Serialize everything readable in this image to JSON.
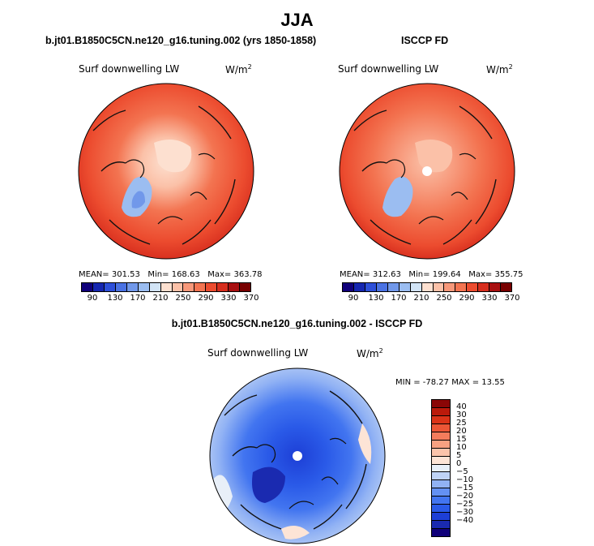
{
  "figure_title": "JJA",
  "panels": [
    {
      "title": "b.jt01.B1850C5CN.ne120_g16.tuning.002 (yrs 1850-1858)",
      "variable": "Surf downwelling LW",
      "units": "W/m",
      "units_exp": "2",
      "stats": {
        "mean_label": "MEAN=",
        "mean": "301.53",
        "min_label": "Min=",
        "min": "168.63",
        "max_label": "Max=",
        "max": "363.78"
      }
    },
    {
      "title": "ISCCP FD",
      "variable": "Surf downwelling LW",
      "units": "W/m",
      "units_exp": "2",
      "stats": {
        "mean_label": "MEAN=",
        "mean": "312.63",
        "min_label": "Min=",
        "min": "199.64",
        "max_label": "Max=",
        "max": "355.75"
      }
    },
    {
      "title": "b.jt01.B1850C5CN.ne120_g16.tuning.002 - ISCCP FD",
      "variable": "Surf downwelling LW",
      "units": "W/m",
      "units_exp": "2",
      "stats_text": "MIN = -78.27 MAX =  13.55"
    }
  ],
  "colors": {
    "abs_scale": [
      "#10007a",
      "#1526b0",
      "#2d4fd9",
      "#4a72e3",
      "#7198ea",
      "#9bbdf1",
      "#d2e4f6",
      "#fde0d0",
      "#fbc1a8",
      "#f7987a",
      "#f37451",
      "#ec4c2f",
      "#d72e1e",
      "#a80f10",
      "#780000"
    ],
    "diff_scale": [
      "#10007a",
      "#1a2ab0",
      "#1d3fd6",
      "#2a5ae8",
      "#4275f0",
      "#6491f3",
      "#91b2f4",
      "#bfd3f6",
      "#e8eff8",
      "#fde4d6",
      "#fbc4ab",
      "#f8a181",
      "#f47c5c",
      "#ec5636",
      "#db3318",
      "#bb1a0b",
      "#8a0606"
    ]
  },
  "chart_data": [
    {
      "type": "heatmap",
      "projection": "north polar stereographic",
      "title": "b.jt01.B1850C5CN.ne120_g16.tuning.002 (yrs 1850-1858)",
      "field": "Surf downwelling LW",
      "units": "W/m2",
      "colorbar_ticks": [
        "90",
        "130",
        "170",
        "210",
        "250",
        "290",
        "330",
        "370"
      ],
      "colorbar_range": [
        90,
        370
      ],
      "mean": 301.53,
      "min": 168.63,
      "max": 363.78
    },
    {
      "type": "heatmap",
      "projection": "north polar stereographic",
      "title": "ISCCP FD",
      "field": "Surf downwelling LW",
      "units": "W/m2",
      "colorbar_ticks": [
        "90",
        "130",
        "170",
        "210",
        "250",
        "290",
        "330",
        "370"
      ],
      "colorbar_range": [
        90,
        370
      ],
      "mean": 312.63,
      "min": 199.64,
      "max": 355.75
    },
    {
      "type": "heatmap",
      "projection": "north polar stereographic",
      "title": "b.jt01.B1850C5CN.ne120_g16.tuning.002 - ISCCP FD",
      "field": "Surf downwelling LW",
      "units": "W/m2",
      "colorbar_ticks": [
        "40",
        "30",
        "25",
        "20",
        "15",
        "10",
        "5",
        "0",
        "−5",
        "−10",
        "−15",
        "−20",
        "−25",
        "−30",
        "−40"
      ],
      "colorbar_range": [
        -40,
        40
      ],
      "min": -78.27,
      "max": 13.55
    }
  ]
}
